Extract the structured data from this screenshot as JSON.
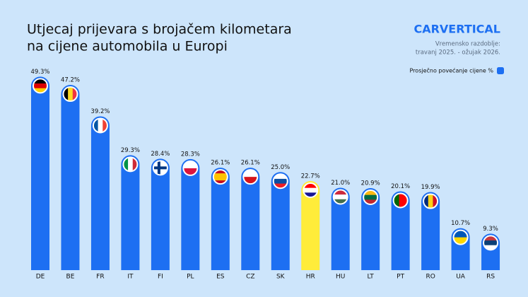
{
  "chart_data": {
    "type": "bar",
    "title": "Utjecaj prijevara s brojačem kilometara",
    "title_line2": "na cijene automobila u Europi",
    "brand": "carVERTICAL",
    "subtitle": "Vremensko razdoblje:",
    "subtitle_line2": "travanj 2025. - ožujak 2026.",
    "categories": [
      "DE",
      "BE",
      "FR",
      "IT",
      "FI",
      "PL",
      "ES",
      "CZ",
      "SK",
      "HR",
      "HU",
      "LT",
      "PT",
      "RO",
      "UA",
      "RS"
    ],
    "series": [
      {
        "name": "Prosječno povećanje cijene %",
        "color": "#1d6ff2",
        "values": [
          49.3,
          47.2,
          39.2,
          29.3,
          28.4,
          28.3,
          26.1,
          26.1,
          25.0,
          22.7,
          21.0,
          20.9,
          20.1,
          19.9,
          10.7,
          9.3
        ],
        "value_labels": [
          "49.3%",
          "47.2%",
          "39.2%",
          "29.3%",
          "28.4%",
          "28.3%",
          "26.1%",
          "26.1%",
          "25.0%",
          "22.7%",
          "21.0%",
          "20.9%",
          "20.1%",
          "19.9%",
          "10.7%",
          "9.3%"
        ],
        "colors": [
          "#1d6ff2",
          "#1d6ff2",
          "#1d6ff2",
          "#1d6ff2",
          "#1d6ff2",
          "#1d6ff2",
          "#1d6ff2",
          "#1d6ff2",
          "#1d6ff2",
          "#ffec3a",
          "#1d6ff2",
          "#1d6ff2",
          "#1d6ff2",
          "#1d6ff2",
          "#1d6ff2",
          "#1d6ff2"
        ]
      }
    ],
    "legend": "top-right"
  }
}
